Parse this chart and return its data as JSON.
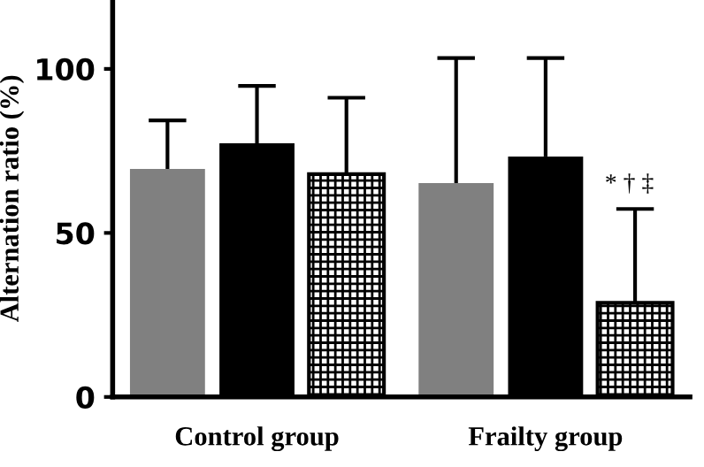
{
  "chart_data": {
    "type": "bar",
    "ylabel": "Alternation ratio (%)",
    "categories": [
      "Control group",
      "Frailty group"
    ],
    "series": [
      {
        "color": "#808080",
        "values": [
          69.5,
          65.2
        ],
        "errors": [
          [
            69.5,
            84.3
          ],
          [
            65.2,
            103.3
          ]
        ]
      },
      {
        "color": "#000000",
        "values": [
          77.3,
          73.3
        ],
        "errors": [
          [
            77.3,
            94.8
          ],
          [
            73.3,
            103.3
          ]
        ]
      },
      {
        "color": "#000000",
        "values": [
          67.9,
          28.7
        ],
        "errors": [
          [
            67.9,
            91.2
          ],
          [
            28.7,
            57.3
          ]
        ]
      }
    ],
    "ylim": [
      0,
      121
    ],
    "yticks": [
      0,
      50,
      100
    ],
    "grid": false,
    "legend": false,
    "annotations": [
      "* † ‡"
    ]
  }
}
